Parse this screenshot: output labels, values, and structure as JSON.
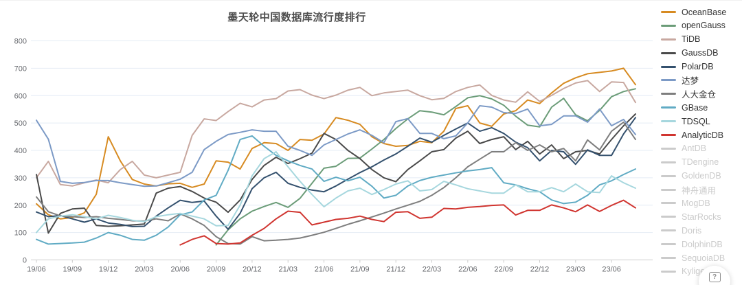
{
  "chart_data": {
    "type": "line",
    "title": "墨天轮中国数据库流行度排行",
    "xlabel": "",
    "ylabel": "",
    "ylim": [
      0,
      800
    ],
    "y_ticks": [
      0,
      100,
      200,
      300,
      400,
      500,
      600,
      700,
      800
    ],
    "grid": true,
    "legend_position": "right",
    "x_months": 51,
    "x_tick_every": 3,
    "x_tick_labels": [
      "19/06",
      "19/09",
      "19/12",
      "20/03",
      "20/06",
      "20/09",
      "20/12",
      "21/03",
      "21/06",
      "21/09",
      "21/12",
      "22/03",
      "22/06",
      "22/09",
      "22/12",
      "23/03",
      "23/06"
    ],
    "series": [
      {
        "name": "OceanBase",
        "color": "#d78b22",
        "values": [
          205,
          165,
          150,
          155,
          172,
          240,
          450,
          362,
          294,
          277,
          270,
          278,
          280,
          265,
          277,
          362,
          357,
          332,
          407,
          428,
          425,
          400,
          440,
          437,
          460,
          520,
          510,
          495,
          450,
          425,
          415,
          418,
          433,
          428,
          470,
          553,
          563,
          500,
          488,
          533,
          545,
          584,
          571,
          610,
          645,
          665,
          680,
          685,
          690,
          700,
          640
        ]
      },
      {
        "name": "openGauss",
        "color": "#6b9c78",
        "values": [
          null,
          null,
          null,
          null,
          null,
          null,
          null,
          null,
          null,
          null,
          null,
          null,
          null,
          null,
          null,
          55,
          110,
          150,
          178,
          195,
          210,
          192,
          225,
          280,
          335,
          342,
          371,
          372,
          405,
          440,
          480,
          515,
          545,
          540,
          530,
          560,
          592,
          600,
          588,
          565,
          525,
          492,
          486,
          558,
          590,
          530,
          508,
          546,
          596,
          615,
          625
        ]
      },
      {
        "name": "TiDB",
        "color": "#c8a8a0",
        "values": [
          300,
          360,
          275,
          270,
          282,
          292,
          282,
          330,
          360,
          310,
          300,
          310,
          320,
          455,
          515,
          509,
          542,
          572,
          559,
          584,
          589,
          617,
          622,
          602,
          589,
          602,
          620,
          630,
          600,
          610,
          615,
          620,
          600,
          585,
          590,
          615,
          630,
          639,
          601,
          584,
          576,
          614,
          579,
          601,
          626,
          646,
          655,
          615,
          650,
          648,
          575
        ]
      },
      {
        "name": "GaussDB",
        "color": "#4a4a4a",
        "values": [
          312,
          98,
          170,
          186,
          189,
          126,
          123,
          125,
          128,
          131,
          244,
          262,
          268,
          250,
          226,
          211,
          174,
          219,
          294,
          345,
          375,
          352,
          370,
          390,
          462,
          440,
          400,
          370,
          330,
          300,
          286,
          330,
          362,
          395,
          403,
          445,
          470,
          425,
          440,
          450,
          403,
          433,
          387,
          420,
          370,
          395,
          400,
          387,
          440,
          490,
          533
        ]
      },
      {
        "name": "PolarDB",
        "color": "#34516e",
        "values": [
          175,
          158,
          162,
          150,
          138,
          150,
          135,
          130,
          122,
          123,
          160,
          190,
          218,
          210,
          215,
          160,
          112,
          170,
          260,
          300,
          320,
          280,
          265,
          255,
          249,
          270,
          295,
          319,
          340,
          365,
          387,
          415,
          445,
          430,
          455,
          478,
          500,
          470,
          483,
          462,
          430,
          410,
          362,
          400,
          395,
          349,
          402,
          382,
          382,
          460,
          520
        ]
      },
      {
        "name": "达梦",
        "color": "#7c9ac6",
        "values": [
          510,
          441,
          287,
          280,
          283,
          290,
          290,
          282,
          275,
          269,
          270,
          282,
          295,
          320,
          403,
          433,
          458,
          466,
          475,
          470,
          470,
          415,
          400,
          382,
          420,
          440,
          460,
          475,
          455,
          428,
          505,
          516,
          462,
          462,
          443,
          453,
          500,
          563,
          558,
          538,
          535,
          551,
          490,
          495,
          526,
          526,
          503,
          551,
          490,
          513,
          458
        ]
      },
      {
        "name": "人大金仓",
        "color": "#7e7e7e",
        "values": [
          230,
          176,
          161,
          158,
          155,
          158,
          152,
          148,
          143,
          142,
          150,
          143,
          168,
          150,
          126,
          85,
          60,
          58,
          85,
          70,
          72,
          75,
          80,
          90,
          101,
          115,
          130,
          143,
          157,
          171,
          186,
          200,
          214,
          236,
          264,
          300,
          340,
          368,
          395,
          395,
          428,
          400,
          420,
          395,
          407,
          362,
          438,
          402,
          470,
          503,
          440
        ]
      },
      {
        "name": "GBase",
        "color": "#60abc4",
        "values": [
          75,
          58,
          60,
          62,
          65,
          80,
          100,
          90,
          75,
          72,
          90,
          120,
          165,
          175,
          219,
          236,
          327,
          440,
          453,
          415,
          382,
          362,
          345,
          332,
          287,
          302,
          289,
          302,
          269,
          226,
          236,
          270,
          290,
          302,
          310,
          318,
          325,
          330,
          337,
          282,
          274,
          260,
          249,
          219,
          206,
          211,
          236,
          274,
          289,
          312,
          332
        ]
      },
      {
        "name": "TDSQL",
        "color": "#a6d7de",
        "values": [
          100,
          150,
          160,
          165,
          158,
          150,
          163,
          155,
          145,
          140,
          158,
          165,
          170,
          160,
          150,
          125,
          126,
          200,
          307,
          370,
          395,
          340,
          287,
          239,
          194,
          226,
          252,
          262,
          239,
          257,
          277,
          289,
          252,
          257,
          287,
          274,
          260,
          252,
          244,
          244,
          274,
          249,
          249,
          264,
          249,
          277,
          249,
          246,
          307,
          282,
          262
        ]
      },
      {
        "name": "AnalyticDB",
        "color": "#d03530",
        "values": [
          null,
          null,
          null,
          null,
          null,
          null,
          null,
          null,
          null,
          null,
          null,
          null,
          55,
          75,
          88,
          60,
          58,
          62,
          90,
          115,
          150,
          178,
          174,
          128,
          138,
          148,
          152,
          160,
          148,
          140,
          174,
          176,
          152,
          156,
          188,
          186,
          192,
          195,
          199,
          201,
          164,
          181,
          181,
          201,
          190,
          176,
          201,
          177,
          199,
          218,
          190
        ]
      }
    ],
    "disabled_series": [
      "AntDB",
      "TDengine",
      "GoldenDB",
      "神舟通用",
      "MogDB",
      "StarRocks",
      "Doris",
      "DolphinDB",
      "SequoiaDB",
      "Kyligence"
    ],
    "axis_color": "#cccccc",
    "grid_color": "#e4ecf5",
    "tick_label_color": "#67696e"
  },
  "help": {
    "label": "?"
  }
}
